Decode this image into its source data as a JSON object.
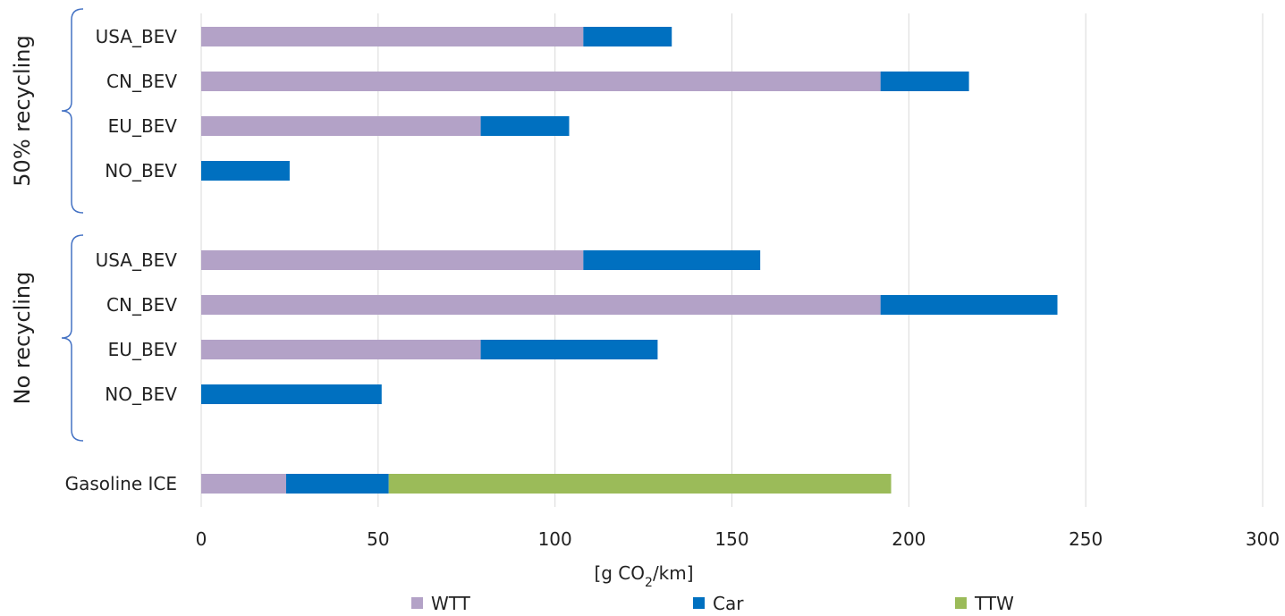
{
  "chart_data": {
    "type": "bar",
    "orientation": "horizontal",
    "stacked": true,
    "xlabel": "[g CO2/km]",
    "xlabel_parts": {
      "before": "[g CO",
      "subscript": "2",
      "after": "/km]"
    },
    "xlim": [
      0,
      300
    ],
    "xticks": [
      0,
      50,
      100,
      150,
      200,
      250,
      300
    ],
    "grid": "vertical",
    "legend_position": "bottom",
    "categories": [
      "USA_BEV",
      "CN_BEV",
      "EU_BEV",
      "NO_BEV",
      "USA_BEV",
      "CN_BEV",
      "EU_BEV",
      "NO_BEV",
      "Gasoline ICE"
    ],
    "groups": [
      {
        "label": "50% recycling",
        "categories": [
          0,
          1,
          2,
          3
        ]
      },
      {
        "label": "No recycling",
        "categories": [
          4,
          5,
          6,
          7
        ]
      }
    ],
    "series": [
      {
        "name": "WTT",
        "color": "#b3a2c7",
        "values": [
          108,
          192,
          79,
          0,
          108,
          192,
          79,
          0,
          24
        ]
      },
      {
        "name": "Car",
        "color": "#0070c0",
        "values": [
          25,
          25,
          25,
          25,
          50,
          50,
          50,
          51,
          29
        ]
      },
      {
        "name": "TTW",
        "color": "#9bbb59",
        "values": [
          0,
          0,
          0,
          0,
          0,
          0,
          0,
          0,
          142
        ]
      }
    ]
  }
}
